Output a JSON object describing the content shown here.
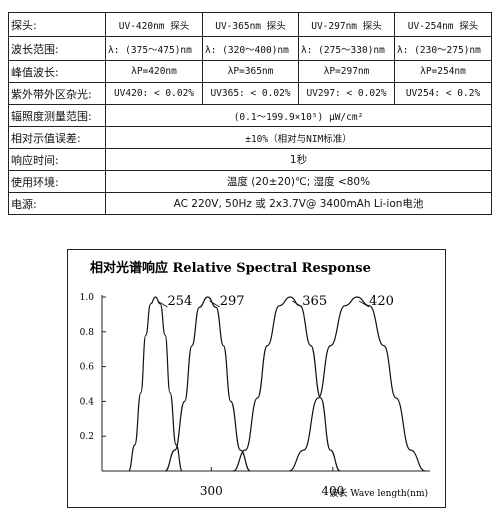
{
  "table": {
    "rows": [
      {
        "label": "探头:",
        "cells": [
          "UV-420nm 探头",
          "UV-365nm 探头",
          "UV-297nm 探头",
          "UV-254nm 探头"
        ]
      },
      {
        "label": "波长范围:",
        "cells": [
          "λ: (375～475)nm",
          "λ: (320～400)nm",
          "λ: (275～330)nm",
          "λ: (230～275)nm"
        ]
      },
      {
        "label": "峰值波长:",
        "cells": [
          "λP=420nm",
          "λP=365nm",
          "λP=297nm",
          "λP=254nm"
        ]
      },
      {
        "label": "紫外带外区杂光:",
        "cells": [
          "UV420: < 0.02%",
          "UV365: < 0.02%",
          "UV297: < 0.02%",
          "UV254: < 0.2%"
        ]
      },
      {
        "label": "辐照度测量范围:",
        "value": "(0.1～199.9×10⁵) μW/cm²"
      },
      {
        "label": "相对示值误差:",
        "value": "±10%（相对与NIM标准）"
      },
      {
        "label": "响应时间:",
        "value": "1秒"
      },
      {
        "label": "使用环境:",
        "value": "温度 (20±20)℃; 湿度 <80%"
      },
      {
        "label": "电源:",
        "value": "AC 220V, 50Hz 或 2x3.7V@ 3400mAh Li-ion电池"
      }
    ]
  },
  "chart_data": {
    "type": "line",
    "title": "相对光谱响应  Relative Spectral Response",
    "xlabel": "波长 Wave length(nm)",
    "ylabel": "",
    "xlim": [
      210,
      480
    ],
    "ylim": [
      0,
      1.0
    ],
    "x_ticks": [
      "300",
      "400"
    ],
    "y_ticks": [
      "1.0",
      "0.8",
      "0.6",
      "0.4",
      "0.2"
    ],
    "series": [
      {
        "name": "254",
        "x": [
          232,
          237,
          242,
          246,
          250,
          254,
          258,
          262,
          266,
          271,
          276
        ],
        "y": [
          0,
          0.15,
          0.45,
          0.78,
          0.96,
          1.0,
          0.96,
          0.78,
          0.45,
          0.15,
          0
        ]
      },
      {
        "name": "297",
        "x": [
          262,
          270,
          278,
          284,
          290,
          297,
          304,
          310,
          316,
          324,
          332
        ],
        "y": [
          0,
          0.12,
          0.4,
          0.72,
          0.94,
          1.0,
          0.94,
          0.72,
          0.4,
          0.12,
          0
        ]
      },
      {
        "name": "365",
        "x": [
          318,
          328,
          338,
          346,
          356,
          365,
          373,
          382,
          390,
          398,
          406
        ],
        "y": [
          0,
          0.12,
          0.42,
          0.72,
          0.95,
          1.0,
          0.95,
          0.72,
          0.42,
          0.12,
          0
        ]
      },
      {
        "name": "420",
        "x": [
          364,
          376,
          388,
          398,
          410,
          420,
          430,
          442,
          452,
          464,
          476
        ],
        "y": [
          0,
          0.12,
          0.42,
          0.72,
          0.95,
          1.0,
          0.95,
          0.72,
          0.42,
          0.12,
          0
        ]
      }
    ]
  }
}
